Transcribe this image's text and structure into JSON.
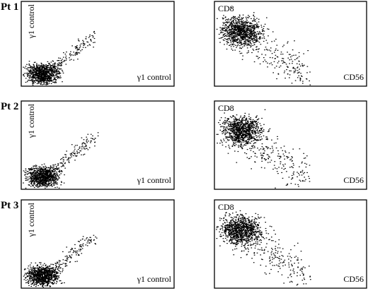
{
  "rows": [
    {
      "label": "Pt 1",
      "left": {
        "y_label": "γ1 control",
        "x_label": "γ1 control"
      },
      "right": {
        "y_label": "CD8",
        "x_label": "CD56"
      }
    },
    {
      "label": "Pt 2",
      "left": {
        "y_label": "γ1 control",
        "x_label": "γ1 control"
      },
      "right": {
        "y_label": "CD8",
        "x_label": "CD56"
      }
    },
    {
      "label": "Pt 3",
      "left": {
        "y_label": "γ1 control",
        "x_label": "γ1 control"
      },
      "right": {
        "y_label": "CD8",
        "x_label": "CD56"
      }
    }
  ]
}
